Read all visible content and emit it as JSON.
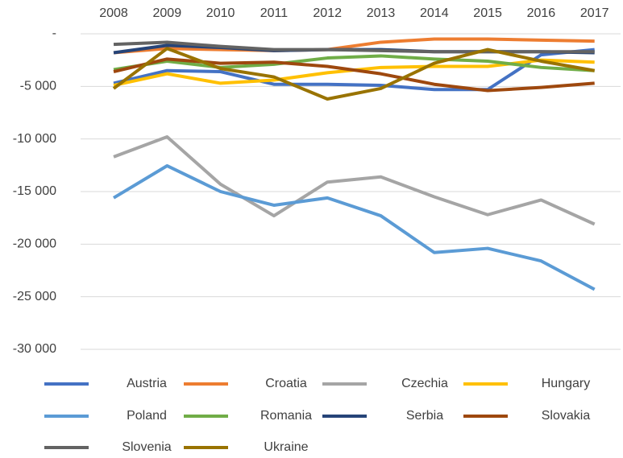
{
  "chart_data": {
    "type": "line",
    "categories": [
      "2008",
      "2009",
      "2010",
      "2011",
      "2012",
      "2013",
      "2014",
      "2015",
      "2016",
      "2017"
    ],
    "ylim": [
      -30000,
      0
    ],
    "yticks": [
      {
        "value": 0,
        "label": "-"
      },
      {
        "value": -5000,
        "label": "-5 000"
      },
      {
        "value": -10000,
        "label": "-10 000"
      },
      {
        "value": -15000,
        "label": "-15 000"
      },
      {
        "value": -20000,
        "label": "-20 000"
      },
      {
        "value": -25000,
        "label": "-25 000"
      },
      {
        "value": -30000,
        "label": "-30 000"
      }
    ],
    "grid": true,
    "legend": "bottom",
    "series": [
      {
        "name": "Austria",
        "color": "#4472c4",
        "values": [
          -4700,
          -3500,
          -3600,
          -4800,
          -4800,
          -4900,
          -5300,
          -5300,
          -2000,
          -1500
        ]
      },
      {
        "name": "Croatia",
        "color": "#ed7d31",
        "values": [
          -1800,
          -1400,
          -1500,
          -1600,
          -1500,
          -800,
          -500,
          -500,
          -600,
          -700
        ]
      },
      {
        "name": "Czechia",
        "color": "#a5a5a5",
        "values": [
          -11700,
          -9800,
          -14300,
          -17300,
          -14100,
          -13600,
          -15500,
          -17200,
          -15800,
          -18100
        ]
      },
      {
        "name": "Hungary",
        "color": "#ffc000",
        "values": [
          -4900,
          -3800,
          -4700,
          -4400,
          -3700,
          -3200,
          -3100,
          -3100,
          -2500,
          -2700
        ]
      },
      {
        "name": "Poland",
        "color": "#5b9bd5",
        "values": [
          -15600,
          -12550,
          -15000,
          -16300,
          -15600,
          -17300,
          -20800,
          -20400,
          -21600,
          -24300
        ]
      },
      {
        "name": "Romania",
        "color": "#70ad47",
        "values": [
          -3400,
          -2600,
          -3200,
          -2900,
          -2300,
          -2100,
          -2400,
          -2600,
          -3200,
          -3500
        ]
      },
      {
        "name": "Serbia",
        "color": "#264478",
        "values": [
          -1800,
          -1100,
          -1300,
          -1600,
          -1500,
          -1500,
          -1700,
          -1700,
          -1700,
          -1800
        ]
      },
      {
        "name": "Slovakia",
        "color": "#9e480e",
        "values": [
          -3600,
          -2400,
          -2800,
          -2700,
          -3100,
          -3800,
          -4800,
          -5400,
          -5100,
          -4700
        ]
      },
      {
        "name": "Slovenia",
        "color": "#636363",
        "values": [
          -1000,
          -800,
          -1200,
          -1500,
          -1500,
          -1600,
          -1700,
          -1700,
          -1700,
          -1700
        ]
      },
      {
        "name": "Ukraine",
        "color": "#997300",
        "values": [
          -5200,
          -1400,
          -3300,
          -4100,
          -6200,
          -5200,
          -2800,
          -1500,
          -2600,
          -3500
        ]
      }
    ]
  }
}
